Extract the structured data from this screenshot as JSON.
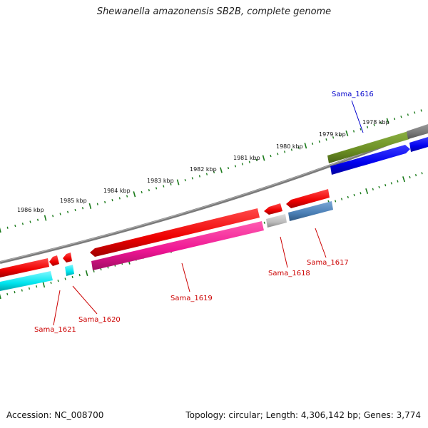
{
  "title": "Shewanella amazonensis SB2B, complete genome",
  "footer": {
    "accession": "Accession: NC_008700",
    "summary": "Topology: circular; Length: 4,306,142 bp; Genes: 3,774"
  },
  "scale": {
    "unit": "kbp",
    "labels": [
      "1978 kbp",
      "1979 kbp",
      "1980 kbp",
      "1981 kbp",
      "1982 kbp",
      "1983 kbp",
      "1984 kbp",
      "1985 kbp",
      "1986 kbp"
    ]
  },
  "genes": [
    {
      "name": "Sama_1616",
      "color": "#0000cc",
      "strand": "forward"
    },
    {
      "name": "Sama_1617",
      "color": "#cc0000",
      "strand": "reverse"
    },
    {
      "name": "Sama_1618",
      "color": "#cc0000",
      "strand": "reverse"
    },
    {
      "name": "Sama_1619",
      "color": "#cc0000",
      "strand": "reverse"
    },
    {
      "name": "Sama_1620",
      "color": "#cc0000",
      "strand": "reverse"
    },
    {
      "name": "Sama_1621",
      "color": "#cc0000",
      "strand": "reverse"
    }
  ],
  "colors": {
    "forward_label": "#0000cc",
    "reverse_label": "#cc0000",
    "backbone": "#808080",
    "ticks": "#1a7a1a",
    "feature_red": "#ee0000",
    "feature_blue": "#0000ee",
    "feature_olive": "#6b8e23",
    "feature_magenta": "#ee1493",
    "feature_steel": "#4a7fb5",
    "feature_cyan": "#00e5ee",
    "feature_grey": "#bbbbbb"
  }
}
